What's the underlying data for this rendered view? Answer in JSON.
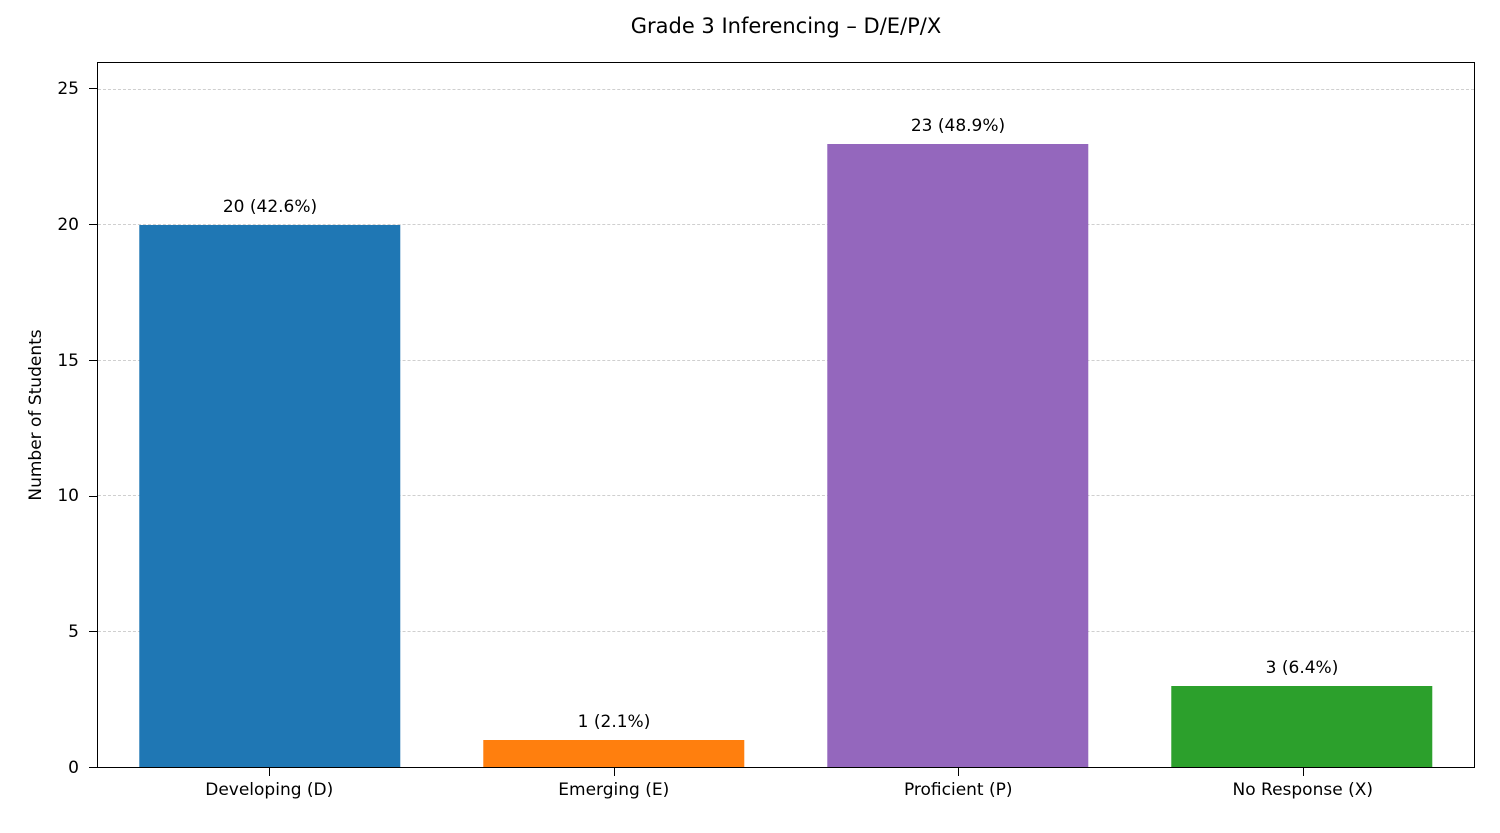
{
  "chart_data": {
    "type": "bar",
    "title": "Grade 3 Inferencing – D/E/P/X",
    "xlabel": "",
    "ylabel": "Number of Students",
    "categories": [
      "Developing (D)",
      "Emerging (E)",
      "Proficient (P)",
      "No Response (X)"
    ],
    "values": [
      20,
      1,
      23,
      3
    ],
    "bar_labels": [
      "20 (42.6%)",
      "1 (2.1%)",
      "23 (48.9%)",
      "3 (6.4%)"
    ],
    "percentages": [
      42.6,
      2.1,
      48.9,
      6.4
    ],
    "colors": [
      "#1f77b4",
      "#ff7f0e",
      "#9467bd",
      "#2ca02c"
    ],
    "yticks": [
      0,
      5,
      10,
      15,
      20,
      25
    ],
    "ylim": [
      0,
      26
    ],
    "grid": "horizontal-dashed",
    "legend": "none"
  }
}
